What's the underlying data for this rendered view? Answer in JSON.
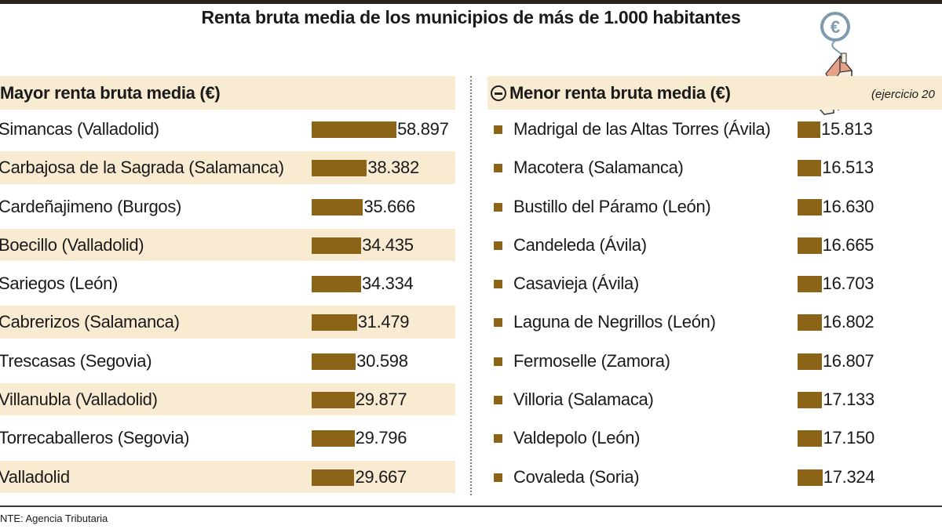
{
  "title": "Renta bruta media de los municipios de más de 1.000 habitantes",
  "note": "(ejercicio 20",
  "source": "NTE: Agencia Tributaria",
  "icons": {
    "header_left": "none",
    "header_right": "minus-circle-icon",
    "illustration": "house-euro-icon"
  },
  "colors": {
    "bar": "#8c6418",
    "stripe": "#f8ebd2"
  },
  "chart_data": [
    {
      "type": "bar",
      "title": "Mayor renta bruta media (€)",
      "categories": [
        "Simancas (Valladolid)",
        "Carbajosa de la Sagrada (Salamanca)",
        "Cardeñajimeno (Burgos)",
        "Boecillo (Valladolid)",
        "Sariegos (León)",
        "Cabrerizos (Salamanca)",
        "Trescasas (Segovia)",
        "Villanubla (Valladolid)",
        "Torrecaballeros (Segovia)",
        "Valladolid"
      ],
      "values": [
        58897,
        38382,
        35666,
        34435,
        34334,
        31479,
        30598,
        29877,
        29796,
        29667
      ],
      "labels": [
        "58.897",
        "38.382",
        "35.666",
        "34.435",
        "34.334",
        "31.479",
        "30.598",
        "29.877",
        "29.796",
        "29.667"
      ]
    },
    {
      "type": "bar",
      "title": "Menor renta bruta media (€)",
      "categories": [
        "Madrigal de las Altas Torres (Ávila)",
        "Macotera (Salamanca)",
        "Bustillo del Páramo (León)",
        "Candeleda (Ávila)",
        "Casavieja (Ávila)",
        "Laguna de Negrillos (León)",
        "Fermoselle (Zamora)",
        "Villoria (Salamaca)",
        "Valdepolo (León)",
        "Covaleda (Soria)"
      ],
      "values": [
        15813,
        16513,
        16630,
        16665,
        16703,
        16802,
        16807,
        17133,
        17150,
        17324
      ],
      "labels": [
        "15.813",
        "16.513",
        "16.630",
        "16.665",
        "16.703",
        "16.802",
        "16.807",
        "17.133",
        "17.150",
        "17.324"
      ]
    }
  ]
}
